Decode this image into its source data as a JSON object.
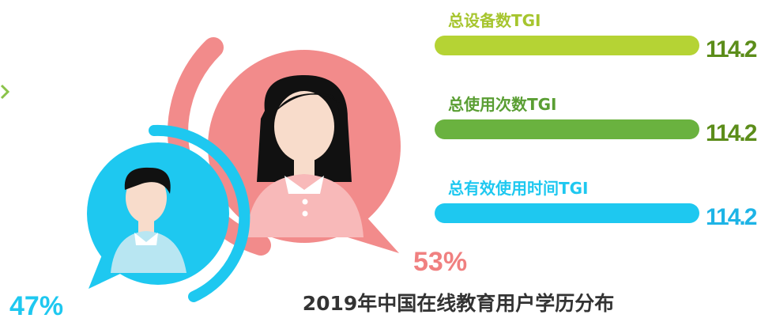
{
  "title": "2019年中国在线教育用户学历分布",
  "gender": [
    {
      "percent": "47%"
    },
    {
      "percent": "53%"
    }
  ],
  "metrics": [
    {
      "label": "总设备数TGI",
      "value": "114.2"
    },
    {
      "label": "总使用次数TGI",
      "value": "114.2"
    },
    {
      "label": "总有效使用时间TGI",
      "value": "114.2"
    }
  ]
}
